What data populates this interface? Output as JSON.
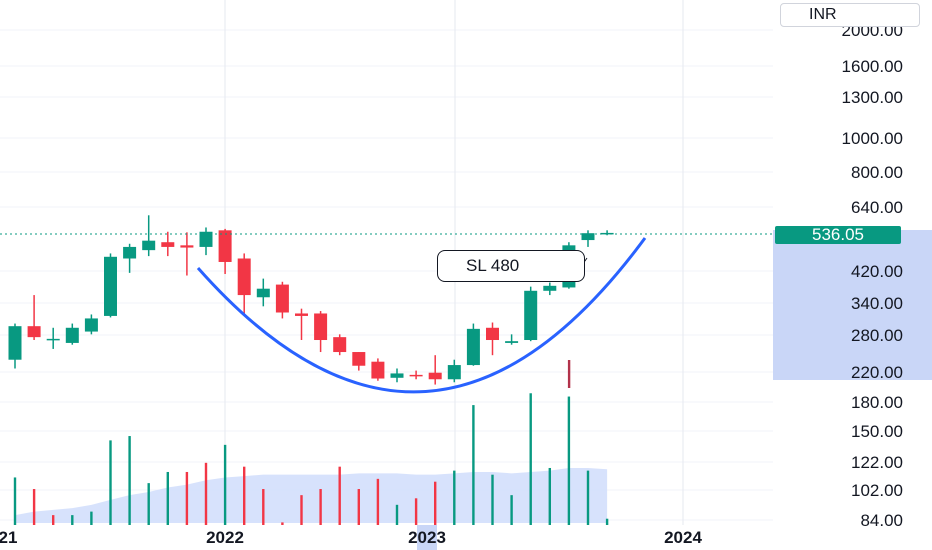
{
  "currency_label": "INR",
  "last_price_label": "536.05",
  "annotation": "SL 480",
  "colors": {
    "up": "#089981",
    "down": "#f23645",
    "curve": "#2962ff",
    "volume_ma_fill": "#d0ddfb",
    "axis_highlight": "#c9d6f7"
  },
  "chart_data": {
    "type": "candlestick",
    "title": "",
    "y_scale": "log",
    "ylim": [
      80,
      2200
    ],
    "y_ticks": [
      "2000.00",
      "1600.00",
      "1300.00",
      "1000.00",
      "800.00",
      "640.00",
      "420.00",
      "340.00",
      "280.00",
      "220.00",
      "180.00",
      "150.00",
      "122.00",
      "102.00",
      "84.00"
    ],
    "x_ticks": [
      "21",
      "2022",
      "2023",
      "2024"
    ],
    "last_price": 536.05,
    "candles": [
      {
        "o": 238,
        "h": 300,
        "l": 225,
        "c": 295
      },
      {
        "o": 295,
        "h": 360,
        "l": 270,
        "c": 275
      },
      {
        "o": 270,
        "h": 292,
        "l": 255,
        "c": 272
      },
      {
        "o": 265,
        "h": 300,
        "l": 262,
        "c": 292
      },
      {
        "o": 285,
        "h": 318,
        "l": 280,
        "c": 310
      },
      {
        "o": 315,
        "h": 470,
        "l": 312,
        "c": 460
      },
      {
        "o": 455,
        "h": 500,
        "l": 415,
        "c": 490
      },
      {
        "o": 480,
        "h": 600,
        "l": 462,
        "c": 510
      },
      {
        "o": 505,
        "h": 540,
        "l": 462,
        "c": 490
      },
      {
        "o": 495,
        "h": 538,
        "l": 408,
        "c": 488
      },
      {
        "o": 490,
        "h": 555,
        "l": 465,
        "c": 540
      },
      {
        "o": 545,
        "h": 550,
        "l": 412,
        "c": 445
      },
      {
        "o": 455,
        "h": 470,
        "l": 318,
        "c": 360
      },
      {
        "o": 355,
        "h": 400,
        "l": 335,
        "c": 375
      },
      {
        "o": 385,
        "h": 392,
        "l": 310,
        "c": 322
      },
      {
        "o": 320,
        "h": 330,
        "l": 270,
        "c": 315
      },
      {
        "o": 320,
        "h": 325,
        "l": 250,
        "c": 270
      },
      {
        "o": 275,
        "h": 280,
        "l": 245,
        "c": 250
      },
      {
        "o": 250,
        "h": 250,
        "l": 222,
        "c": 229
      },
      {
        "o": 235,
        "h": 240,
        "l": 208,
        "c": 211
      },
      {
        "o": 212,
        "h": 225,
        "l": 206,
        "c": 218
      },
      {
        "o": 216,
        "h": 222,
        "l": 210,
        "c": 215
      },
      {
        "o": 219,
        "h": 245,
        "l": 203,
        "c": 210
      },
      {
        "o": 210,
        "h": 238,
        "l": 206,
        "c": 230
      },
      {
        "o": 230,
        "h": 300,
        "l": 229,
        "c": 290
      },
      {
        "o": 292,
        "h": 302,
        "l": 245,
        "c": 270
      },
      {
        "o": 265,
        "h": 280,
        "l": 262,
        "c": 268
      },
      {
        "o": 270,
        "h": 380,
        "l": 268,
        "c": 370
      },
      {
        "o": 370,
        "h": 390,
        "l": 360,
        "c": 382
      },
      {
        "o": 378,
        "h": 505,
        "l": 375,
        "c": 495
      },
      {
        "o": 512,
        "h": 545,
        "l": 490,
        "c": 535
      },
      {
        "o": 536,
        "h": 545,
        "l": 528,
        "c": 536
      }
    ],
    "volumes": [
      {
        "v": 112,
        "up": true
      },
      {
        "v": 104,
        "up": false
      },
      {
        "v": 88,
        "up": false
      },
      {
        "v": 88,
        "up": true
      },
      {
        "v": 90,
        "up": true
      },
      {
        "v": 142,
        "up": true
      },
      {
        "v": 146,
        "up": true
      },
      {
        "v": 108,
        "up": true
      },
      {
        "v": 116,
        "up": true
      },
      {
        "v": 116,
        "up": false
      },
      {
        "v": 123,
        "up": false
      },
      {
        "v": 138,
        "up": true
      },
      {
        "v": 120,
        "up": false
      },
      {
        "v": 104,
        "up": false
      },
      {
        "v": 84,
        "up": false
      },
      {
        "v": 100,
        "up": false
      },
      {
        "v": 104,
        "up": false
      },
      {
        "v": 120,
        "up": false
      },
      {
        "v": 104,
        "up": false
      },
      {
        "v": 111,
        "up": false
      },
      {
        "v": 94,
        "up": true
      },
      {
        "v": 98,
        "up": false
      },
      {
        "v": 109,
        "up": false
      },
      {
        "v": 117,
        "up": true
      },
      {
        "v": 178,
        "up": true
      },
      {
        "v": 114,
        "up": true
      },
      {
        "v": 100,
        "up": true
      },
      {
        "v": 192,
        "up": true
      },
      {
        "v": 119,
        "up": true
      },
      {
        "v": 188,
        "up": true
      },
      {
        "v": 117,
        "up": true
      },
      {
        "v": 86,
        "up": true
      }
    ],
    "volume_ma": [
      88,
      90,
      91,
      92,
      94,
      97,
      100,
      102,
      105,
      107,
      110,
      112,
      113,
      114,
      114,
      114,
      114,
      114,
      115,
      115,
      115,
      114,
      114,
      115,
      116,
      116,
      115,
      116,
      117,
      119,
      119,
      118
    ]
  }
}
